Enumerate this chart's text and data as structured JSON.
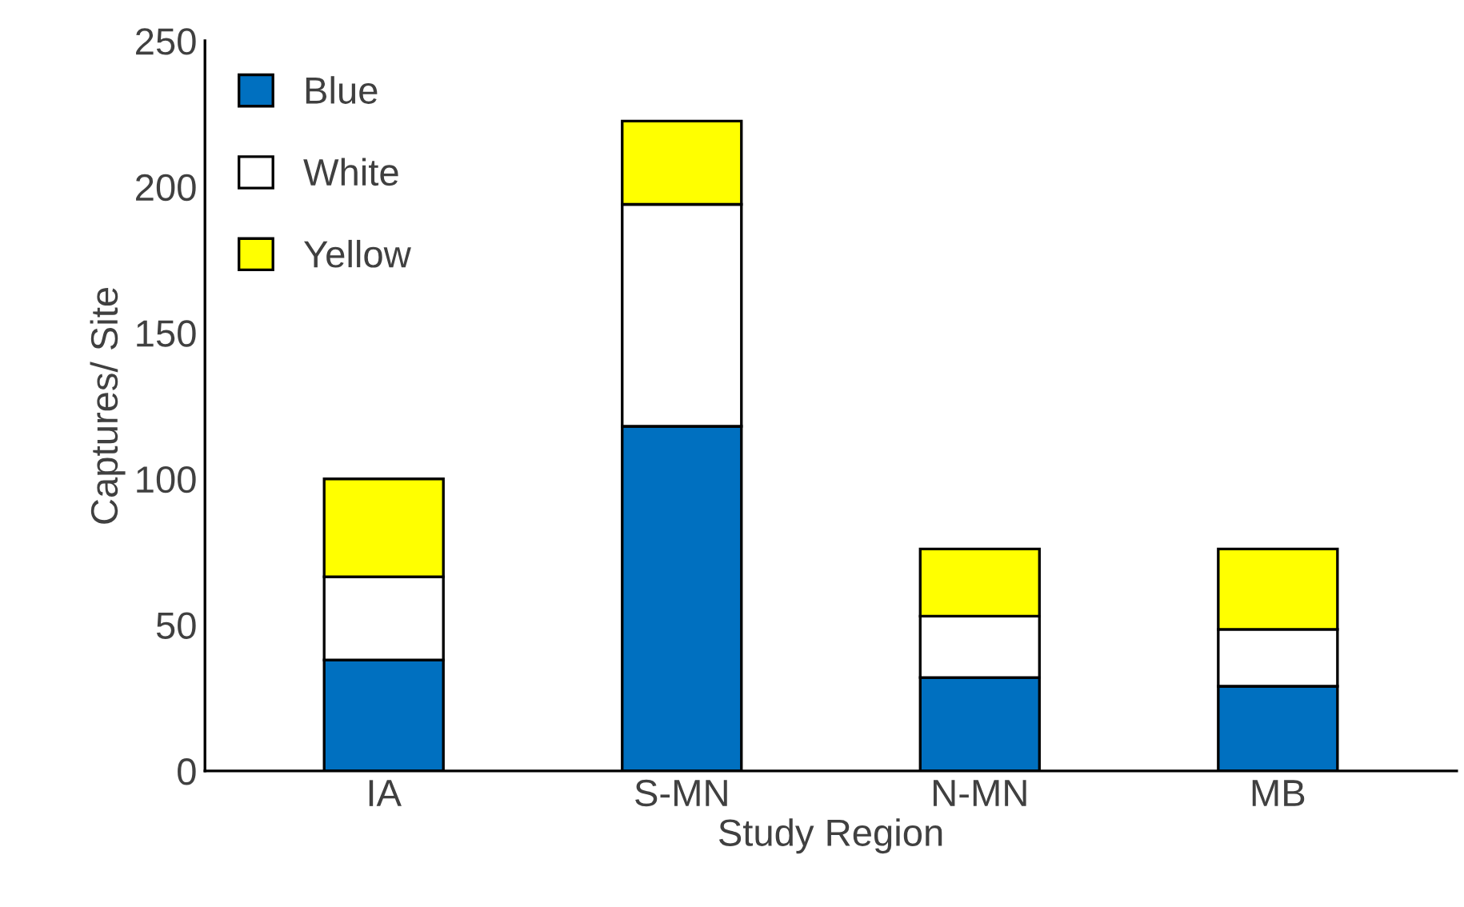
{
  "chart_data": {
    "type": "bar",
    "stacked": true,
    "xlabel": "Study Region",
    "ylabel": "Captures/ Site",
    "categories": [
      "IA",
      "S-MN",
      "N-MN",
      "MB"
    ],
    "series": [
      {
        "name": "Blue",
        "color": "#0070c0",
        "values": [
          38,
          118,
          32,
          29
        ]
      },
      {
        "name": "White",
        "color": "#ffffff",
        "values": [
          28.5,
          76,
          21,
          19.5
        ]
      },
      {
        "name": "Yellow",
        "color": "#ffff00",
        "values": [
          33.5,
          28.5,
          23,
          27.5
        ]
      }
    ],
    "ylim": [
      0,
      250
    ],
    "yticks": [
      0,
      50,
      100,
      150,
      200,
      250
    ],
    "grid": false,
    "legend": "top left"
  }
}
